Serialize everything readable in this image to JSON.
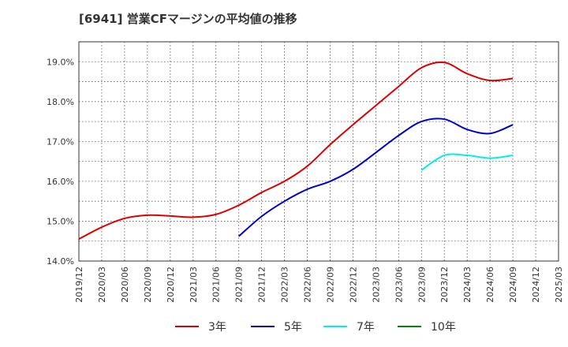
{
  "chart_data": {
    "type": "line",
    "title": "[6941]  営業CFマージンの平均値の推移",
    "xlabel": "",
    "ylabel": "",
    "x_ticks": [
      "2019/12",
      "2020/03",
      "2020/06",
      "2020/09",
      "2020/12",
      "2021/03",
      "2021/06",
      "2021/09",
      "2021/12",
      "2022/03",
      "2022/06",
      "2022/09",
      "2022/12",
      "2023/03",
      "2023/06",
      "2023/09",
      "2023/12",
      "2024/03",
      "2024/06",
      "2024/09",
      "2024/12",
      "2025/03"
    ],
    "y_ticks": [
      "14.0%",
      "15.0%",
      "16.0%",
      "17.0%",
      "18.0%",
      "19.0%"
    ],
    "ylim": [
      14.0,
      19.5
    ],
    "grid": "dotted",
    "legend_position": "bottom",
    "series": [
      {
        "name": "3年",
        "color": "#dd0000",
        "points": [
          [
            "2019/12",
            14.55
          ],
          [
            "2020/03",
            14.85
          ],
          [
            "2020/06",
            15.07
          ],
          [
            "2020/09",
            15.15
          ],
          [
            "2020/12",
            15.13
          ],
          [
            "2021/03",
            15.1
          ],
          [
            "2021/06",
            15.17
          ],
          [
            "2021/09",
            15.4
          ],
          [
            "2021/12",
            15.72
          ],
          [
            "2022/03",
            16.0
          ],
          [
            "2022/06",
            16.38
          ],
          [
            "2022/09",
            16.92
          ],
          [
            "2022/12",
            17.42
          ],
          [
            "2023/03",
            17.9
          ],
          [
            "2023/06",
            18.38
          ],
          [
            "2023/09",
            18.85
          ],
          [
            "2023/12",
            18.98
          ],
          [
            "2024/03",
            18.7
          ],
          [
            "2024/06",
            18.53
          ],
          [
            "2024/09",
            18.58
          ]
        ]
      },
      {
        "name": "5年",
        "color": "#0000cc",
        "points": [
          [
            "2021/09",
            14.62
          ],
          [
            "2021/12",
            15.12
          ],
          [
            "2022/03",
            15.5
          ],
          [
            "2022/06",
            15.8
          ],
          [
            "2022/09",
            16.0
          ],
          [
            "2022/12",
            16.3
          ],
          [
            "2023/03",
            16.72
          ],
          [
            "2023/06",
            17.15
          ],
          [
            "2023/09",
            17.5
          ],
          [
            "2023/12",
            17.56
          ],
          [
            "2024/03",
            17.3
          ],
          [
            "2024/06",
            17.2
          ],
          [
            "2024/09",
            17.42
          ]
        ]
      },
      {
        "name": "7年",
        "color": "#00eeee",
        "points": [
          [
            "2023/09",
            16.28
          ],
          [
            "2023/12",
            16.65
          ],
          [
            "2024/03",
            16.65
          ],
          [
            "2024/06",
            16.58
          ],
          [
            "2024/09",
            16.65
          ]
        ]
      },
      {
        "name": "10年",
        "color": "#008800",
        "points": []
      }
    ]
  }
}
